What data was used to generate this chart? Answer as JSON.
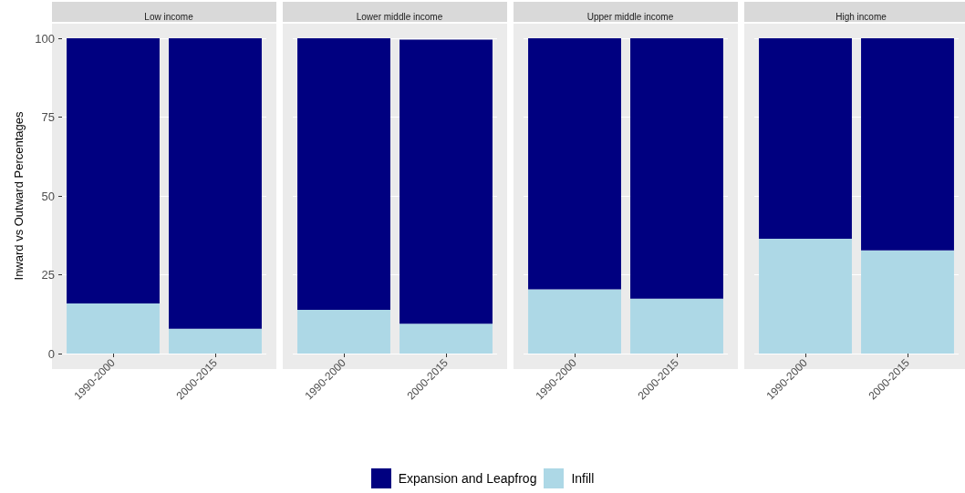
{
  "chart_data": [
    {
      "type": "bar",
      "title": "Low income",
      "ylabel": "Inward vs Outward Percentages",
      "categories": [
        "1990-2000",
        "2000-2015"
      ],
      "stacked": true,
      "ylim": [
        0,
        100
      ],
      "yticks": [
        0,
        25,
        50,
        75,
        100
      ],
      "grid": "y",
      "legend": "bottom",
      "series": [
        {
          "name": "Infill",
          "color": "#add8e6",
          "values": [
            15.9,
            7.9
          ]
        },
        {
          "name": "Expansion and Leapfrog",
          "color": "#000080",
          "values": [
            84.1,
            92.1
          ]
        }
      ]
    },
    {
      "type": "bar",
      "title": "Lower middle income",
      "categories": [
        "1990-2000",
        "2000-2015"
      ],
      "stacked": true,
      "ylim": [
        0,
        100
      ],
      "yticks": [
        0,
        25,
        50,
        75,
        100
      ],
      "grid": "y",
      "tick_labels": "x",
      "series": [
        {
          "color": "#add8e6",
          "values": [
            13.9,
            9.5
          ]
        },
        {
          "color": "#000080",
          "values": [
            86.1,
            90.1
          ]
        }
      ]
    },
    {
      "type": "bar",
      "title": "Upper middle income",
      "categories": [
        "1990-2000",
        "2000-2015"
      ],
      "stacked": true,
      "ylim": [
        0,
        100
      ],
      "yticks": [
        0,
        25,
        50,
        75,
        100
      ],
      "grid": "y",
      "tick_labels": "x",
      "series": [
        {
          "color": "#add8e6",
          "values": [
            20.4,
            17.4
          ]
        },
        {
          "color": "#000080",
          "values": [
            79.6,
            82.6
          ]
        }
      ]
    },
    {
      "type": "bar",
      "title": "High income",
      "categories": [
        "1990-2000",
        "2000-2015"
      ],
      "stacked": true,
      "ylim": [
        0,
        100
      ],
      "yticks": [
        0,
        25,
        50,
        75,
        100
      ],
      "grid": "y",
      "tick_labels": "x",
      "series": [
        {
          "color": "#add8e6",
          "values": [
            36.4,
            32.7
          ]
        },
        {
          "color": "#000080",
          "values": [
            63.6,
            67.3
          ]
        }
      ]
    }
  ]
}
